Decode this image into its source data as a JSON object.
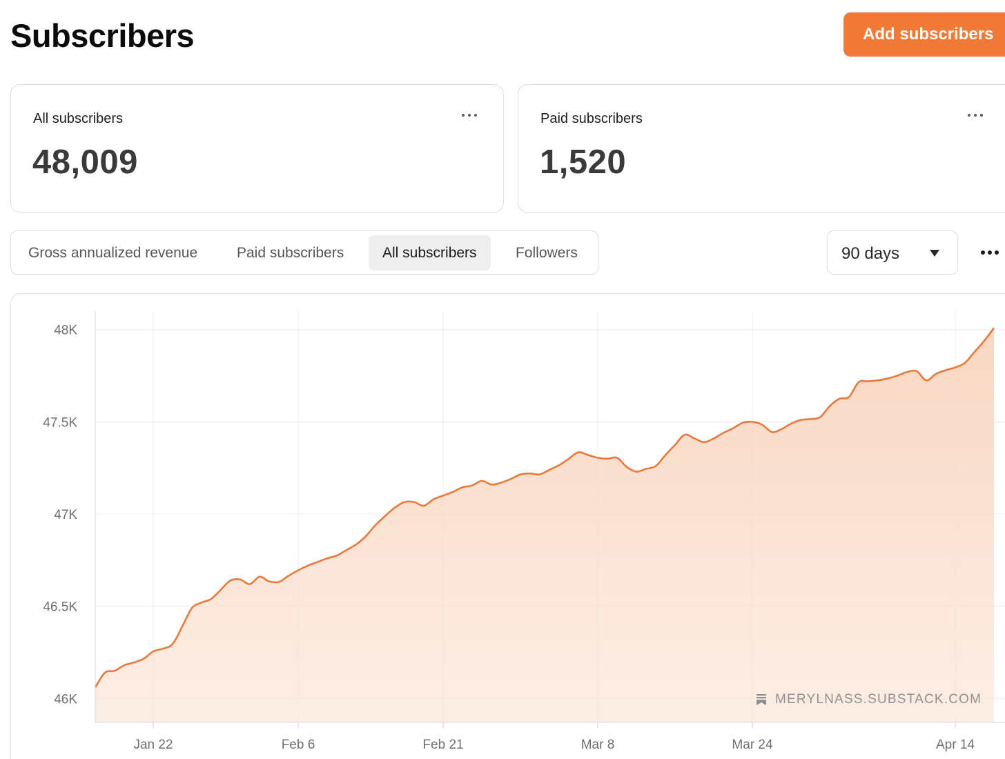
{
  "header": {
    "title": "Subscribers",
    "add_button_label": "Add subscribers"
  },
  "stats": [
    {
      "label": "All subscribers",
      "value": "48,009"
    },
    {
      "label": "Paid subscribers",
      "value": "1,520"
    }
  ],
  "tabs": [
    {
      "label": "Gross annualized revenue",
      "active": false
    },
    {
      "label": "Paid subscribers",
      "active": false
    },
    {
      "label": "All subscribers",
      "active": true
    },
    {
      "label": "Followers",
      "active": false
    }
  ],
  "range_select": {
    "selected": "90 days"
  },
  "watermark": "MERYLNASS.SUBSTACK.COM",
  "colors": {
    "accent": "#f07a35",
    "line": "#e8793a",
    "area": "#f9d9c6"
  },
  "chart_data": {
    "type": "area",
    "x_tick_labels": [
      "Jan 22",
      "Feb 6",
      "Feb 21",
      "Mar 8",
      "Mar 24",
      "Apr 14"
    ],
    "y_tick_labels": [
      "48K",
      "47.5K",
      "47K",
      "46.5K",
      "46K"
    ],
    "y_ticks": [
      48000,
      47500,
      47000,
      46500,
      46000
    ],
    "ylim": [
      45870,
      48100
    ],
    "x_ticks_dates": [
      "2024-01-22",
      "2024-02-06",
      "2024-02-21",
      "2024-03-08",
      "2024-03-24",
      "2024-04-14"
    ],
    "xlim": [
      "2024-01-16",
      "2024-04-18"
    ],
    "grid": true,
    "points": [
      [
        "2024-01-16",
        46060
      ],
      [
        "2024-01-17",
        46140
      ],
      [
        "2024-01-18",
        46150
      ],
      [
        "2024-01-19",
        46180
      ],
      [
        "2024-01-20",
        46195
      ],
      [
        "2024-01-21",
        46215
      ],
      [
        "2024-01-22",
        46255
      ],
      [
        "2024-01-23",
        46270
      ],
      [
        "2024-01-24",
        46295
      ],
      [
        "2024-01-25",
        46390
      ],
      [
        "2024-01-26",
        46490
      ],
      [
        "2024-01-27",
        46520
      ],
      [
        "2024-01-28",
        46540
      ],
      [
        "2024-01-29",
        46590
      ],
      [
        "2024-01-30",
        46640
      ],
      [
        "2024-01-31",
        46645
      ],
      [
        "2024-02-01",
        46620
      ],
      [
        "2024-02-02",
        46660
      ],
      [
        "2024-02-03",
        46635
      ],
      [
        "2024-02-04",
        46632
      ],
      [
        "2024-02-05",
        46665
      ],
      [
        "2024-02-06",
        46695
      ],
      [
        "2024-02-07",
        46720
      ],
      [
        "2024-02-08",
        46740
      ],
      [
        "2024-02-09",
        46760
      ],
      [
        "2024-02-10",
        46775
      ],
      [
        "2024-02-11",
        46805
      ],
      [
        "2024-02-12",
        46835
      ],
      [
        "2024-02-13",
        46880
      ],
      [
        "2024-02-14",
        46940
      ],
      [
        "2024-02-15",
        46990
      ],
      [
        "2024-02-16",
        47035
      ],
      [
        "2024-02-17",
        47065
      ],
      [
        "2024-02-18",
        47065
      ],
      [
        "2024-02-19",
        47045
      ],
      [
        "2024-02-20",
        47080
      ],
      [
        "2024-02-21",
        47100
      ],
      [
        "2024-02-22",
        47120
      ],
      [
        "2024-02-23",
        47145
      ],
      [
        "2024-02-24",
        47155
      ],
      [
        "2024-02-25",
        47180
      ],
      [
        "2024-02-26",
        47160
      ],
      [
        "2024-02-27",
        47170
      ],
      [
        "2024-02-28",
        47190
      ],
      [
        "2024-02-29",
        47215
      ],
      [
        "2024-03-01",
        47220
      ],
      [
        "2024-03-02",
        47215
      ],
      [
        "2024-03-03",
        47240
      ],
      [
        "2024-03-04",
        47265
      ],
      [
        "2024-03-05",
        47300
      ],
      [
        "2024-03-06",
        47335
      ],
      [
        "2024-03-07",
        47320
      ],
      [
        "2024-03-08",
        47305
      ],
      [
        "2024-03-09",
        47300
      ],
      [
        "2024-03-10",
        47305
      ],
      [
        "2024-03-11",
        47255
      ],
      [
        "2024-03-12",
        47230
      ],
      [
        "2024-03-13",
        47245
      ],
      [
        "2024-03-14",
        47260
      ],
      [
        "2024-03-15",
        47320
      ],
      [
        "2024-03-16",
        47375
      ],
      [
        "2024-03-17",
        47430
      ],
      [
        "2024-03-18",
        47410
      ],
      [
        "2024-03-19",
        47390
      ],
      [
        "2024-03-20",
        47410
      ],
      [
        "2024-03-21",
        47440
      ],
      [
        "2024-03-22",
        47465
      ],
      [
        "2024-03-23",
        47495
      ],
      [
        "2024-03-24",
        47500
      ],
      [
        "2024-03-25",
        47485
      ],
      [
        "2024-03-26",
        47445
      ],
      [
        "2024-03-27",
        47460
      ],
      [
        "2024-03-28",
        47490
      ],
      [
        "2024-03-29",
        47510
      ],
      [
        "2024-03-30",
        47515
      ],
      [
        "2024-03-31",
        47525
      ],
      [
        "2024-04-01",
        47585
      ],
      [
        "2024-04-02",
        47625
      ],
      [
        "2024-04-03",
        47635
      ],
      [
        "2024-04-04",
        47715
      ],
      [
        "2024-04-05",
        47720
      ],
      [
        "2024-04-06",
        47725
      ],
      [
        "2024-04-07",
        47735
      ],
      [
        "2024-04-08",
        47750
      ],
      [
        "2024-04-09",
        47770
      ],
      [
        "2024-04-10",
        47775
      ],
      [
        "2024-04-11",
        47725
      ],
      [
        "2024-04-12",
        47760
      ],
      [
        "2024-04-13",
        47780
      ],
      [
        "2024-04-14",
        47795
      ],
      [
        "2024-04-15",
        47820
      ],
      [
        "2024-04-16",
        47880
      ],
      [
        "2024-04-17",
        47940
      ],
      [
        "2024-04-18",
        48009
      ]
    ]
  }
}
